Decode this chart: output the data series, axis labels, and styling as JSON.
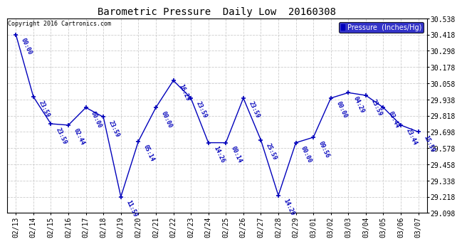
{
  "title": "Barometric Pressure  Daily Low  20160308",
  "copyright_text": "Copyright 2016 Cartronics.com",
  "legend_label": "Pressure  (Inches/Hg)",
  "background_color": "#ffffff",
  "plot_bg_color": "#ffffff",
  "line_color": "#0000bb",
  "grid_color": "#cccccc",
  "text_color": "#0000bb",
  "ylim": [
    29.098,
    30.538
  ],
  "yticks": [
    29.098,
    29.218,
    29.338,
    29.458,
    29.578,
    29.698,
    29.818,
    29.938,
    30.058,
    30.178,
    30.298,
    30.418,
    30.538
  ],
  "dates": [
    "02/13",
    "02/14",
    "02/15",
    "02/16",
    "02/17",
    "02/18",
    "02/19",
    "02/20",
    "02/21",
    "02/22",
    "02/23",
    "02/24",
    "02/25",
    "02/26",
    "02/27",
    "02/28",
    "02/29",
    "03/01",
    "03/02",
    "03/03",
    "03/04",
    "03/05",
    "03/06",
    "03/07"
  ],
  "points": [
    {
      "date": "02/13",
      "label": "00:00",
      "value": 30.418
    },
    {
      "date": "02/14",
      "label": "23:59",
      "value": 29.958
    },
    {
      "date": "02/15",
      "label": "23:59",
      "value": 29.758
    },
    {
      "date": "02/16",
      "label": "02:44",
      "value": 29.748
    },
    {
      "date": "02/17",
      "label": "00:00",
      "value": 29.878
    },
    {
      "date": "02/18",
      "label": "23:59",
      "value": 29.808
    },
    {
      "date": "02/19",
      "label": "11:59",
      "value": 29.218
    },
    {
      "date": "02/20",
      "label": "05:14",
      "value": 29.628
    },
    {
      "date": "02/21",
      "label": "00:00",
      "value": 29.878
    },
    {
      "date": "02/22",
      "label": "16:29",
      "value": 30.078
    },
    {
      "date": "02/23",
      "label": "23:59",
      "value": 29.948
    },
    {
      "date": "02/24",
      "label": "14:26",
      "value": 29.618
    },
    {
      "date": "02/25",
      "label": "00:14",
      "value": 29.618
    },
    {
      "date": "02/26",
      "label": "23:59",
      "value": 29.948
    },
    {
      "date": "02/27",
      "label": "25:59",
      "value": 29.638
    },
    {
      "date": "02/28",
      "label": "14:29",
      "value": 29.228
    },
    {
      "date": "02/29",
      "label": "00:00",
      "value": 29.618
    },
    {
      "date": "03/01",
      "label": "09:56",
      "value": 29.658
    },
    {
      "date": "03/02",
      "label": "00:00",
      "value": 29.948
    },
    {
      "date": "03/03",
      "label": "04:29",
      "value": 29.988
    },
    {
      "date": "03/04",
      "label": "23:59",
      "value": 29.968
    },
    {
      "date": "03/05",
      "label": "03:44",
      "value": 29.878
    },
    {
      "date": "03/06",
      "label": "23:44",
      "value": 29.748
    },
    {
      "date": "03/07",
      "label": "15:59",
      "value": 29.698
    }
  ]
}
